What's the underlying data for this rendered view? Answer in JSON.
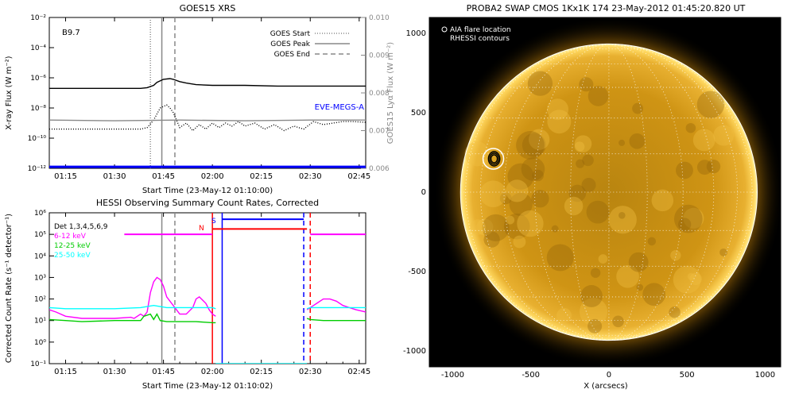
{
  "chart_data": [
    {
      "type": "line",
      "title": "GOES15 XRS",
      "xlabel": "Start Time (23-May-12 01:10:00)",
      "ylabel": "X-ray Flux (W m⁻²)",
      "ylabel_right": "GOES15 Lyα Flux (W m⁻²)",
      "x_ticks": [
        "01:15",
        "01:30",
        "01:45",
        "02:00",
        "02:15",
        "02:30",
        "02:45"
      ],
      "x_tick_minutes": [
        5,
        20,
        35,
        50,
        65,
        80,
        95
      ],
      "xlim_minutes": [
        0,
        97
      ],
      "y_log": true,
      "ylim_log10": [
        -12,
        -2
      ],
      "y_ticks": [
        "10⁻²",
        "10⁻⁴",
        "10⁻⁶",
        "10⁻⁸",
        "10⁻¹⁰",
        "10⁻¹²"
      ],
      "y_tick_log10": [
        -2,
        -4,
        -6,
        -8,
        -10,
        -12
      ],
      "y_right_ticks": [
        "0.010",
        "0.009",
        "0.008",
        "0.007",
        "0.006"
      ],
      "y_right_values": [
        0.01,
        0.009,
        0.008,
        0.007,
        0.006
      ],
      "annotation": "B9.7",
      "legend": {
        "position": "top-right",
        "entries": [
          {
            "label": "GOES Start",
            "style": "dotted"
          },
          {
            "label": "GOES Peak",
            "style": "solid"
          },
          {
            "label": "GOES End",
            "style": "dashed"
          }
        ]
      },
      "series_label": "EVE-MEGS-A",
      "series": [
        {
          "name": "",
          "color": "#000000",
          "style": "solid",
          "x": [
            0,
            28,
            30,
            32,
            33,
            35,
            37,
            38,
            40,
            42,
            45,
            50,
            60,
            70,
            80,
            90,
            97
          ],
          "y_log10": [
            -6.7,
            -6.7,
            -6.65,
            -6.5,
            -6.3,
            -6.1,
            -6.05,
            -6.1,
            -6.25,
            -6.35,
            -6.45,
            -6.5,
            -6.5,
            -6.55,
            -6.55,
            -6.55,
            -6.55
          ]
        },
        {
          "name": "",
          "color": "#000000",
          "style": "dotted",
          "x": [
            0,
            28,
            30,
            32,
            33,
            34,
            36,
            37,
            38,
            39,
            40,
            42,
            44,
            46,
            48,
            50,
            52,
            54,
            56,
            58,
            60,
            63,
            66,
            69,
            72,
            75,
            78,
            81,
            84,
            87,
            90,
            93,
            97
          ],
          "y_log10": [
            -9.4,
            -9.4,
            -9.3,
            -8.8,
            -8.4,
            -8.0,
            -7.8,
            -8.0,
            -8.3,
            -8.8,
            -9.3,
            -9.0,
            -9.5,
            -9.1,
            -9.4,
            -9.0,
            -9.3,
            -9.0,
            -9.2,
            -8.9,
            -9.2,
            -9.0,
            -9.4,
            -9.1,
            -9.5,
            -9.2,
            -9.4,
            -8.9,
            -9.1,
            -9.0,
            -8.9,
            -8.9,
            -8.95
          ]
        },
        {
          "name": "EVE-MEGS-A",
          "color": "#888888",
          "style": "solid",
          "x": [
            0,
            20,
            40,
            60,
            80,
            97
          ],
          "y_log10": [
            -8.8,
            -8.85,
            -8.8,
            -8.85,
            -8.8,
            -8.8
          ]
        },
        {
          "name": "",
          "color": "#0000ff",
          "style": "solid",
          "x": [
            0,
            97
          ],
          "y_log10": [
            -11.9,
            -11.9
          ]
        }
      ],
      "vlines": [
        {
          "x": 31,
          "style": "dotted",
          "color": "#888888"
        },
        {
          "x": 34.5,
          "style": "solid",
          "color": "#888888"
        },
        {
          "x": 38.5,
          "style": "dashed",
          "color": "#888888"
        }
      ]
    },
    {
      "type": "line",
      "title": "HESSI Observing Summary Count Rates, Corrected",
      "xlabel": "Start Time (23-May-12 01:10:02)",
      "ylabel": "Corrected Count Rate (s⁻¹ detector⁻¹)",
      "x_ticks": [
        "01:15",
        "01:30",
        "01:45",
        "02:00",
        "02:15",
        "02:30",
        "02:45"
      ],
      "x_tick_minutes": [
        5,
        20,
        35,
        50,
        65,
        80,
        95
      ],
      "xlim_minutes": [
        0,
        97
      ],
      "y_log": true,
      "ylim_log10": [
        -1,
        6
      ],
      "y_ticks": [
        "10⁶",
        "10⁵",
        "10⁴",
        "10³",
        "10²",
        "10¹",
        "10⁰",
        "10⁻¹"
      ],
      "y_tick_log10": [
        6,
        5,
        4,
        3,
        2,
        1,
        0,
        -1
      ],
      "legend": {
        "position": "top-left",
        "entries": [
          {
            "label": "Det 1,3,4,5,6,9",
            "color": "#000000"
          },
          {
            "label": "6-12 keV",
            "color": "#ff00ff"
          },
          {
            "label": "12-25 keV",
            "color": "#00cc00"
          },
          {
            "label": "25-50 keV",
            "color": "#00ffff"
          }
        ]
      },
      "flag_labels": [
        {
          "text": "N",
          "color": "#ff0000"
        },
        {
          "text": "S",
          "color": "#0000ff"
        }
      ],
      "flag_bars": [
        {
          "color": "#ff00ff",
          "x": [
            23,
            50
          ],
          "y_log10": 5
        },
        {
          "color": "#ff0000",
          "x": [
            50,
            79
          ],
          "y_log10": 5.25
        },
        {
          "color": "#0000ff",
          "x": [
            53,
            78
          ],
          "y_log10": 5.7
        },
        {
          "color": "#ff00ff",
          "x": [
            80,
            97
          ],
          "y_log10": 5
        }
      ],
      "series": [
        {
          "name": "6-12 keV",
          "color": "#ff00ff",
          "x": [
            0,
            2,
            5,
            10,
            20,
            25,
            26,
            28,
            29,
            30,
            31,
            32,
            33,
            34,
            35,
            36,
            38,
            40,
            42,
            44,
            45,
            46,
            48,
            49,
            50,
            51
          ],
          "y_log10": [
            1.5,
            1.4,
            1.2,
            1.1,
            1.1,
            1.15,
            1.1,
            1.3,
            1.2,
            1.4,
            2.3,
            2.8,
            3.0,
            2.9,
            2.6,
            2.1,
            1.7,
            1.3,
            1.3,
            1.6,
            2.0,
            2.1,
            1.8,
            1.5,
            1.3,
            1.2
          ]
        },
        {
          "name": "25-50 keV",
          "color": "#00ffff",
          "x": [
            0,
            5,
            10,
            20,
            28,
            30,
            32,
            34,
            36,
            40,
            45,
            50,
            51
          ],
          "y_log10": [
            1.6,
            1.55,
            1.55,
            1.55,
            1.6,
            1.65,
            1.7,
            1.65,
            1.6,
            1.6,
            1.6,
            1.6,
            1.55
          ]
        },
        {
          "name": "12-25 keV",
          "color": "#00cc00",
          "x": [
            0,
            5,
            10,
            20,
            28,
            29,
            31,
            32,
            33,
            34,
            36,
            40,
            45,
            50,
            51
          ],
          "y_log10": [
            1.05,
            1.0,
            0.95,
            1.0,
            1.0,
            1.2,
            1.3,
            1.05,
            1.3,
            1.0,
            0.95,
            0.95,
            0.95,
            0.9,
            0.9
          ]
        },
        {
          "name": "6-12 keV",
          "color": "#ff00ff",
          "x": [
            79,
            80,
            81,
            82,
            84,
            86,
            88,
            90,
            92,
            94,
            97
          ],
          "y_log10": [
            1.5,
            1.6,
            1.7,
            1.8,
            2.0,
            2.0,
            1.9,
            1.7,
            1.6,
            1.5,
            1.4
          ]
        },
        {
          "name": "25-50 keV",
          "color": "#00ffff",
          "x": [
            79,
            80,
            84,
            88,
            92,
            97
          ],
          "y_log10": [
            1.55,
            1.6,
            1.6,
            1.6,
            1.6,
            1.6
          ]
        },
        {
          "name": "12-25 keV",
          "color": "#00cc00",
          "x": [
            79,
            80,
            84,
            88,
            92,
            97
          ],
          "y_log10": [
            1.1,
            1.05,
            1.0,
            1.0,
            1.0,
            1.0
          ]
        },
        {
          "name": "25-50 keV",
          "color": "#00ffff",
          "x": [
            51,
            53,
            78,
            79
          ],
          "y_log10": [
            -1,
            -1,
            -1,
            -1
          ]
        }
      ],
      "vlines": [
        {
          "x": 34.5,
          "style": "solid",
          "color": "#888888"
        },
        {
          "x": 38.5,
          "style": "dashed",
          "color": "#888888"
        },
        {
          "x": 50,
          "style": "solid",
          "color": "#ff0000"
        },
        {
          "x": 53,
          "style": "solid",
          "color": "#0000ff"
        },
        {
          "x": 78,
          "style": "dashed",
          "color": "#0000ff"
        },
        {
          "x": 80,
          "style": "dashed",
          "color": "#ff0000"
        }
      ]
    },
    {
      "type": "heatmap",
      "title": "PROBA2 SWAP CMOS 1Kx1K 174 23-May-2012 01:45:20.820 UT",
      "xlabel": "X (arcsecs)",
      "ylabel": "",
      "xlim": [
        -1150,
        1100
      ],
      "ylim": [
        -1100,
        1100
      ],
      "x_ticks": [
        "-1000",
        "-500",
        "0",
        "500",
        "1000"
      ],
      "x_tick_values": [
        -1000,
        -500,
        0,
        500,
        1000
      ],
      "y_ticks": [
        "1000",
        "500",
        "0",
        "-500",
        "-1000"
      ],
      "y_tick_values": [
        1000,
        500,
        0,
        -500,
        -1000
      ],
      "solar_radius_arcsec": 950,
      "grid_on": true,
      "legend": {
        "position": "top-left",
        "entries": [
          "AIA flare location",
          "RHESSI contours"
        ]
      },
      "flare_location": {
        "x": -740,
        "y": 210
      },
      "colors": {
        "background": "#000000",
        "disk_center": "#c08a10",
        "disk_mid": "#d89a18",
        "limb": "#ffe060"
      }
    }
  ]
}
